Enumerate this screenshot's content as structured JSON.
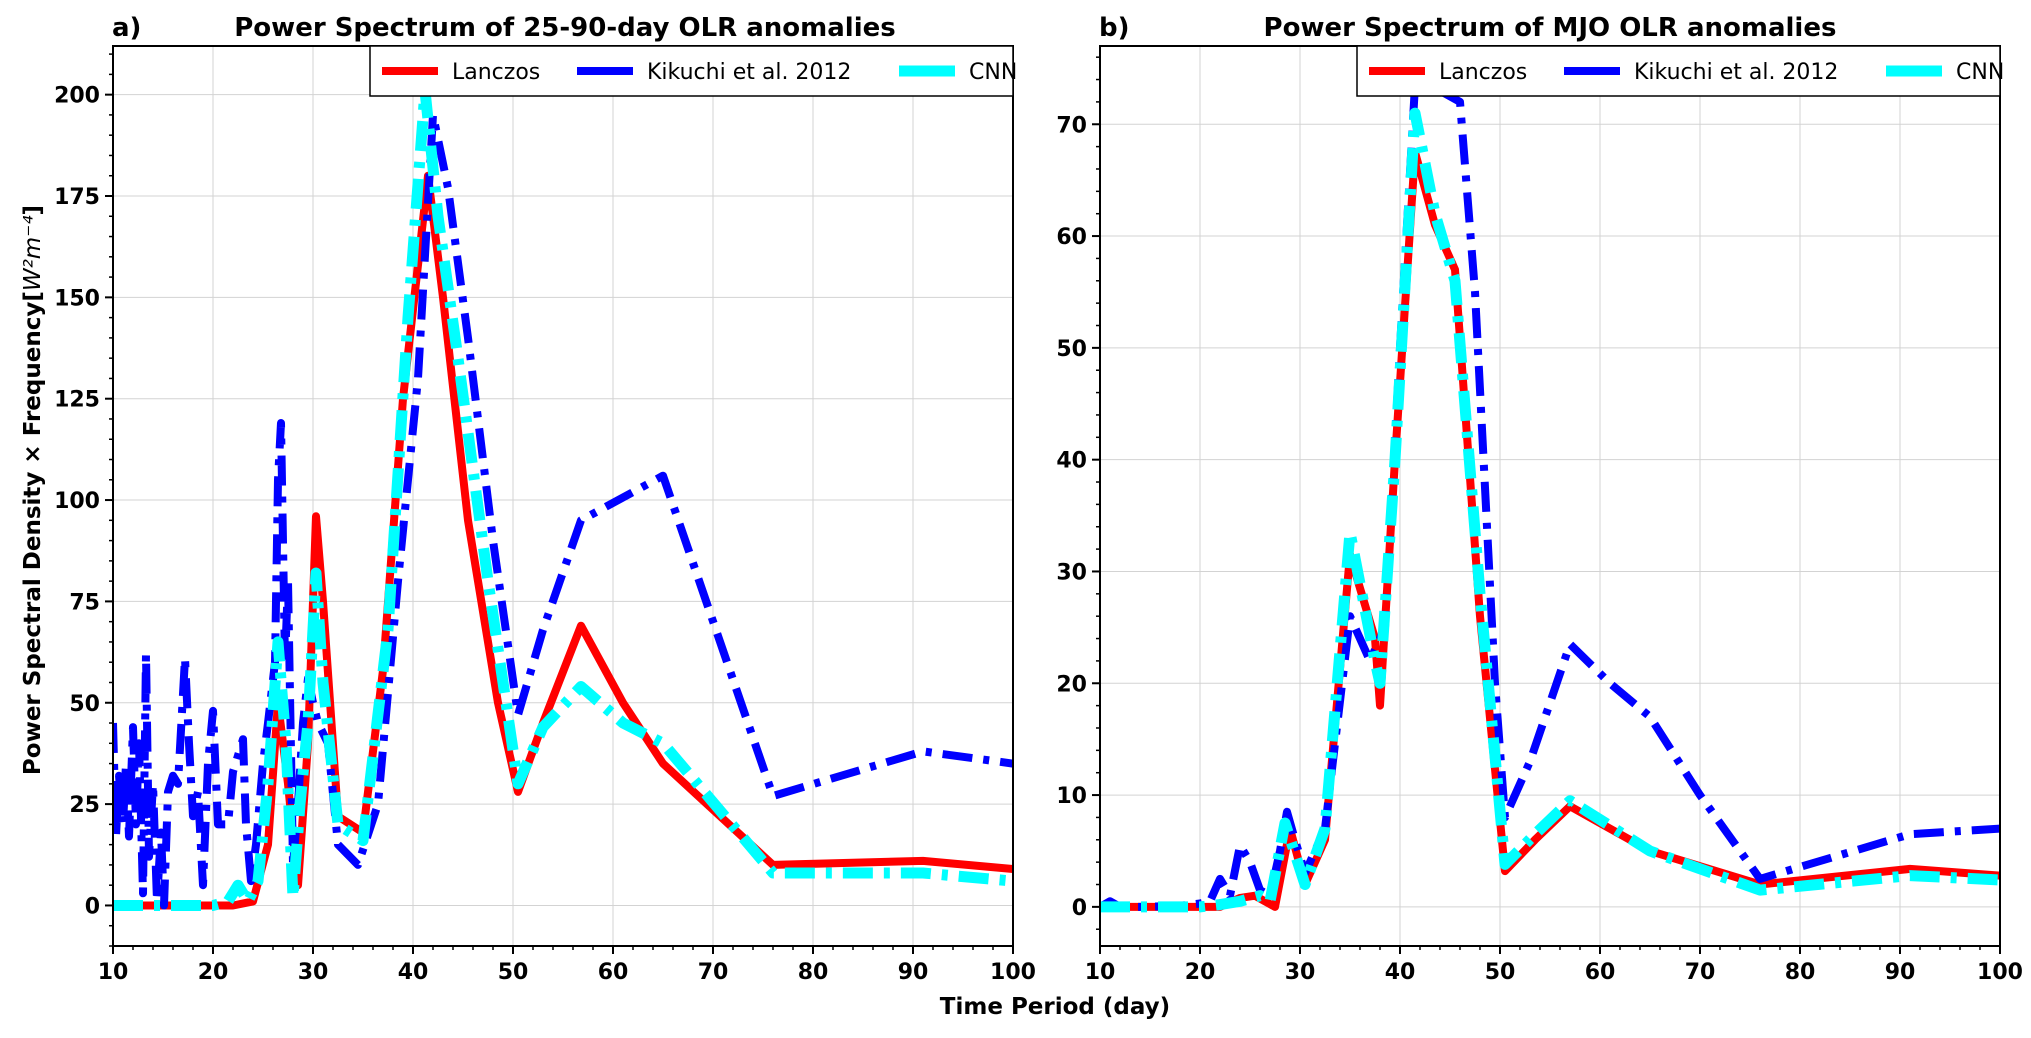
{
  "figure": {
    "shared_xlabel": "Time Period (day)",
    "shared_ylabel_main": "Power Spectral Density × Frequency[",
    "shared_ylabel_math": "W²m⁻⁴",
    "shared_ylabel_close": "]"
  },
  "colors": {
    "Lanczos": "#ff0000",
    "Kikuchi et al. 2012": "#0000ff",
    "CNN": "#00ffff",
    "grid": "#d3d3d3"
  },
  "chart_data": [
    {
      "type": "line",
      "panel_label": "a)",
      "title": "Power Spectrum of 25-90-day OLR anomalies",
      "xlabel": "Time Period (day)",
      "ylabel": "Power Spectral Density × Frequency[W²m⁻⁴]",
      "xlim": [
        10,
        100
      ],
      "ylim": [
        -10,
        212
      ],
      "xticks": [
        10,
        20,
        30,
        40,
        50,
        60,
        70,
        80,
        90,
        100
      ],
      "yticks": [
        0,
        25,
        50,
        75,
        100,
        125,
        150,
        175,
        200
      ],
      "grid": true,
      "legend_position": "top-right",
      "series": [
        {
          "name": "Lanczos",
          "color": "#ff0000",
          "style": "solid",
          "points": [
            [
              10,
              0
            ],
            [
              13,
              0
            ],
            [
              16,
              0
            ],
            [
              20,
              0
            ],
            [
              22,
              0
            ],
            [
              24,
              1
            ],
            [
              25.5,
              15
            ],
            [
              26.5,
              50
            ],
            [
              27.5,
              30
            ],
            [
              28.5,
              5
            ],
            [
              29.5,
              40
            ],
            [
              30.3,
              96
            ],
            [
              31,
              75
            ],
            [
              32.5,
              22
            ],
            [
              35,
              18
            ],
            [
              37,
              58
            ],
            [
              39,
              125
            ],
            [
              41.5,
              180
            ],
            [
              43,
              150
            ],
            [
              45.5,
              95
            ],
            [
              48.5,
              50
            ],
            [
              50.5,
              28
            ],
            [
              53,
              45
            ],
            [
              56.8,
              69
            ],
            [
              61,
              50
            ],
            [
              65,
              35
            ],
            [
              76,
              10
            ],
            [
              91,
              11
            ],
            [
              100,
              9
            ]
          ]
        },
        {
          "name": "Kikuchi et al. 2012",
          "color": "#0000ff",
          "style": "dashdot",
          "points": [
            [
              10,
              45
            ],
            [
              10.3,
              17
            ],
            [
              10.6,
              32
            ],
            [
              11,
              20
            ],
            [
              11.3,
              35
            ],
            [
              11.6,
              17
            ],
            [
              12,
              44
            ],
            [
              12.3,
              20
            ],
            [
              12.6,
              40
            ],
            [
              13,
              3
            ],
            [
              13.3,
              62
            ],
            [
              13.6,
              12
            ],
            [
              14,
              30
            ],
            [
              14.4,
              1
            ],
            [
              14.8,
              18
            ],
            [
              15.1,
              0
            ],
            [
              15.5,
              28
            ],
            [
              16,
              32
            ],
            [
              16.5,
              30
            ],
            [
              17.2,
              61
            ],
            [
              17.6,
              40
            ],
            [
              18,
              22
            ],
            [
              18.5,
              28
            ],
            [
              19,
              5
            ],
            [
              19.5,
              35
            ],
            [
              20,
              48
            ],
            [
              20.5,
              20
            ],
            [
              21.5,
              20
            ],
            [
              22,
              33
            ],
            [
              22.5,
              37
            ],
            [
              23,
              41
            ],
            [
              23.3,
              20
            ],
            [
              23.8,
              6
            ],
            [
              24.3,
              15
            ],
            [
              25,
              35
            ],
            [
              25.5,
              45
            ],
            [
              26.2,
              60
            ],
            [
              26.5,
              105
            ],
            [
              26.8,
              119
            ],
            [
              27.2,
              60
            ],
            [
              27.5,
              80
            ],
            [
              28,
              10
            ],
            [
              28.5,
              25
            ],
            [
              29,
              45
            ],
            [
              29.5,
              56
            ],
            [
              30,
              50
            ],
            [
              30.5,
              45
            ],
            [
              31.5,
              40
            ],
            [
              32.5,
              15
            ],
            [
              34.5,
              10
            ],
            [
              36.5,
              25
            ],
            [
              38.5,
              80
            ],
            [
              40.5,
              130
            ],
            [
              42,
              195
            ],
            [
              43.5,
              177
            ],
            [
              45.5,
              140
            ],
            [
              48,
              90
            ],
            [
              50.5,
              47
            ],
            [
              53,
              68
            ],
            [
              56.8,
              95
            ],
            [
              65,
              106
            ],
            [
              76,
              27
            ],
            [
              91,
              38
            ],
            [
              100,
              35
            ]
          ]
        },
        {
          "name": "CNN",
          "color": "#00ffff",
          "style": "dashdot",
          "points": [
            [
              10,
              0
            ],
            [
              13,
              0
            ],
            [
              16,
              0
            ],
            [
              20,
              0
            ],
            [
              21.5,
              1
            ],
            [
              22.5,
              5
            ],
            [
              23.5,
              1
            ],
            [
              24.5,
              6
            ],
            [
              25.5,
              30
            ],
            [
              26.5,
              65
            ],
            [
              27.3,
              40
            ],
            [
              28,
              2
            ],
            [
              28.7,
              25
            ],
            [
              29.5,
              45
            ],
            [
              30.3,
              82
            ],
            [
              31,
              55
            ],
            [
              32.5,
              20
            ],
            [
              35,
              16
            ],
            [
              37.5,
              68
            ],
            [
              39.5,
              145
            ],
            [
              41.2,
              201
            ],
            [
              42.5,
              170
            ],
            [
              44.5,
              135
            ],
            [
              47.5,
              80
            ],
            [
              50.5,
              30
            ],
            [
              53,
              44
            ],
            [
              56.8,
              54
            ],
            [
              61,
              45
            ],
            [
              65,
              40
            ],
            [
              76,
              8
            ],
            [
              91,
              8
            ],
            [
              100,
              6
            ]
          ]
        }
      ]
    },
    {
      "type": "line",
      "panel_label": "b)",
      "title": "Power Spectrum of MJO OLR anomalies",
      "xlabel": "Time Period (day)",
      "ylabel": "",
      "xlim": [
        10,
        100
      ],
      "ylim": [
        -3.5,
        77
      ],
      "xticks": [
        10,
        20,
        30,
        40,
        50,
        60,
        70,
        80,
        90,
        100
      ],
      "yticks": [
        0,
        10,
        20,
        30,
        40,
        50,
        60,
        70
      ],
      "grid": true,
      "legend_position": "top-right",
      "series": [
        {
          "name": "Lanczos",
          "color": "#ff0000",
          "style": "solid",
          "points": [
            [
              10,
              0
            ],
            [
              14,
              0
            ],
            [
              18,
              0
            ],
            [
              20,
              0
            ],
            [
              22,
              0
            ],
            [
              24,
              0.8
            ],
            [
              25.5,
              1.0
            ],
            [
              27.5,
              0
            ],
            [
              29,
              7
            ],
            [
              30.5,
              2
            ],
            [
              32.5,
              6
            ],
            [
              35,
              31.5
            ],
            [
              37.5,
              24
            ],
            [
              38,
              18
            ],
            [
              39.5,
              40
            ],
            [
              41.5,
              67.5
            ],
            [
              43.5,
              61
            ],
            [
              45.5,
              57
            ],
            [
              48,
              26
            ],
            [
              50.5,
              3.2
            ],
            [
              53.5,
              6
            ],
            [
              57,
              9
            ],
            [
              65,
              5
            ],
            [
              76,
              2
            ],
            [
              91,
              3.4
            ],
            [
              100,
              2.8
            ]
          ]
        },
        {
          "name": "Kikuchi et al. 2012",
          "color": "#0000ff",
          "style": "dashdot",
          "points": [
            [
              10,
              0
            ],
            [
              11,
              0.5
            ],
            [
              12,
              0
            ],
            [
              14,
              0
            ],
            [
              18,
              0.1
            ],
            [
              20,
              0.3
            ],
            [
              21,
              0.5
            ],
            [
              22,
              2.5
            ],
            [
              23,
              1
            ],
            [
              24,
              5.5
            ],
            [
              25,
              4
            ],
            [
              26,
              1.5
            ],
            [
              27,
              1
            ],
            [
              28,
              5
            ],
            [
              28.7,
              8.5
            ],
            [
              29.5,
              6
            ],
            [
              30.5,
              3
            ],
            [
              32.5,
              7
            ],
            [
              35,
              26
            ],
            [
              37,
              22
            ],
            [
              38.5,
              25
            ],
            [
              40,
              50
            ],
            [
              41.5,
              73.5
            ],
            [
              44,
              73
            ],
            [
              46,
              72
            ],
            [
              47.5,
              55
            ],
            [
              49.5,
              20
            ],
            [
              50.5,
              8
            ],
            [
              53,
              13
            ],
            [
              57,
              23.5
            ],
            [
              61,
              20
            ],
            [
              65,
              17
            ],
            [
              70,
              10
            ],
            [
              76,
              2.5
            ],
            [
              91,
              6.5
            ],
            [
              100,
              7
            ]
          ]
        },
        {
          "name": "CNN",
          "color": "#00ffff",
          "style": "dashdot",
          "points": [
            [
              10,
              0
            ],
            [
              14,
              0
            ],
            [
              18,
              0
            ],
            [
              20,
              0
            ],
            [
              22,
              0.2
            ],
            [
              24,
              0.5
            ],
            [
              26,
              1
            ],
            [
              27,
              0.5
            ],
            [
              28.5,
              7.5
            ],
            [
              30.5,
              2
            ],
            [
              32.5,
              7
            ],
            [
              35,
              33.5
            ],
            [
              37.5,
              22
            ],
            [
              38,
              20
            ],
            [
              39.5,
              40
            ],
            [
              41.5,
              71
            ],
            [
              43.5,
              62
            ],
            [
              45.5,
              56
            ],
            [
              48,
              28
            ],
            [
              50.5,
              3.8
            ],
            [
              53.5,
              6.5
            ],
            [
              57,
              9.5
            ],
            [
              65,
              5
            ],
            [
              76,
              1.5
            ],
            [
              91,
              2.8
            ],
            [
              100,
              2.4
            ]
          ]
        }
      ]
    }
  ]
}
